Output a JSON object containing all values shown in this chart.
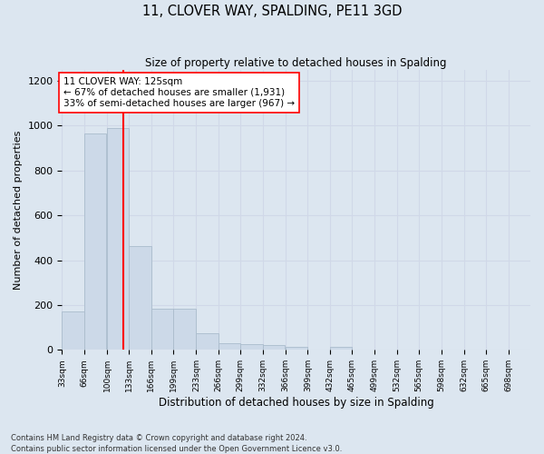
{
  "title": "11, CLOVER WAY, SPALDING, PE11 3GD",
  "subtitle": "Size of property relative to detached houses in Spalding",
  "xlabel": "Distribution of detached houses by size in Spalding",
  "ylabel": "Number of detached properties",
  "bar_color": "#ccd9e8",
  "bar_edge_color": "#aabccc",
  "grid_color": "#d0d8e8",
  "background_color": "#dce6f0",
  "fig_background": "#dce6f0",
  "vline_x": 125,
  "vline_color": "red",
  "annotation_text": "11 CLOVER WAY: 125sqm\n← 67% of detached houses are smaller (1,931)\n33% of semi-detached houses are larger (967) →",
  "annotation_box_color": "white",
  "annotation_box_edge": "red",
  "footnote": "Contains HM Land Registry data © Crown copyright and database right 2024.\nContains public sector information licensed under the Open Government Licence v3.0.",
  "bin_edges": [
    33,
    66,
    100,
    133,
    166,
    199,
    233,
    266,
    299,
    332,
    366,
    399,
    432,
    465,
    499,
    532,
    565,
    598,
    632,
    665,
    698
  ],
  "bin_counts": [
    170,
    965,
    990,
    465,
    185,
    185,
    75,
    30,
    25,
    20,
    12,
    0,
    12,
    0,
    0,
    0,
    0,
    0,
    0,
    0
  ],
  "ylim": [
    0,
    1250
  ],
  "yticks": [
    0,
    200,
    400,
    600,
    800,
    1000,
    1200
  ],
  "xtick_labels": [
    "33sqm",
    "66sqm",
    "100sqm",
    "133sqm",
    "166sqm",
    "199sqm",
    "233sqm",
    "266sqm",
    "299sqm",
    "332sqm",
    "366sqm",
    "399sqm",
    "432sqm",
    "465sqm",
    "499sqm",
    "532sqm",
    "565sqm",
    "598sqm",
    "632sqm",
    "665sqm",
    "698sqm"
  ],
  "xtick_positions": [
    33,
    66,
    100,
    133,
    166,
    199,
    233,
    266,
    299,
    332,
    366,
    399,
    432,
    465,
    499,
    532,
    565,
    598,
    632,
    665,
    698
  ]
}
